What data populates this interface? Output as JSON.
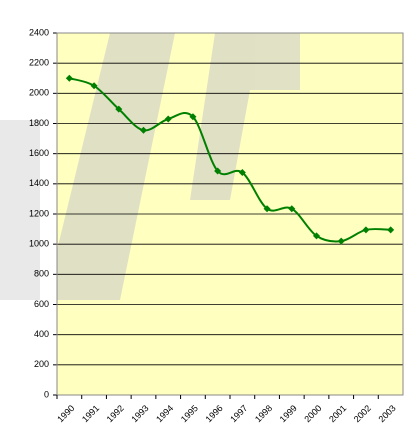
{
  "chart_data": {
    "type": "line",
    "categories": [
      "1990",
      "1991",
      "1992",
      "1993",
      "1994",
      "1995",
      "1996",
      "1997",
      "1998",
      "1999",
      "2000",
      "2001",
      "2002",
      "2003"
    ],
    "series": [
      {
        "color": "#008000",
        "values": [
          2100,
          2050,
          1895,
          1755,
          1830,
          1845,
          1485,
          1475,
          1235,
          1235,
          1055,
          1020,
          1095,
          1095
        ]
      }
    ],
    "ylim": [
      0,
      2400
    ],
    "yticks": [
      0,
      200,
      400,
      600,
      800,
      1000,
      1200,
      1400,
      1600,
      1800,
      2000,
      2200,
      2400
    ],
    "grid": true,
    "background": "#ffffc0"
  }
}
